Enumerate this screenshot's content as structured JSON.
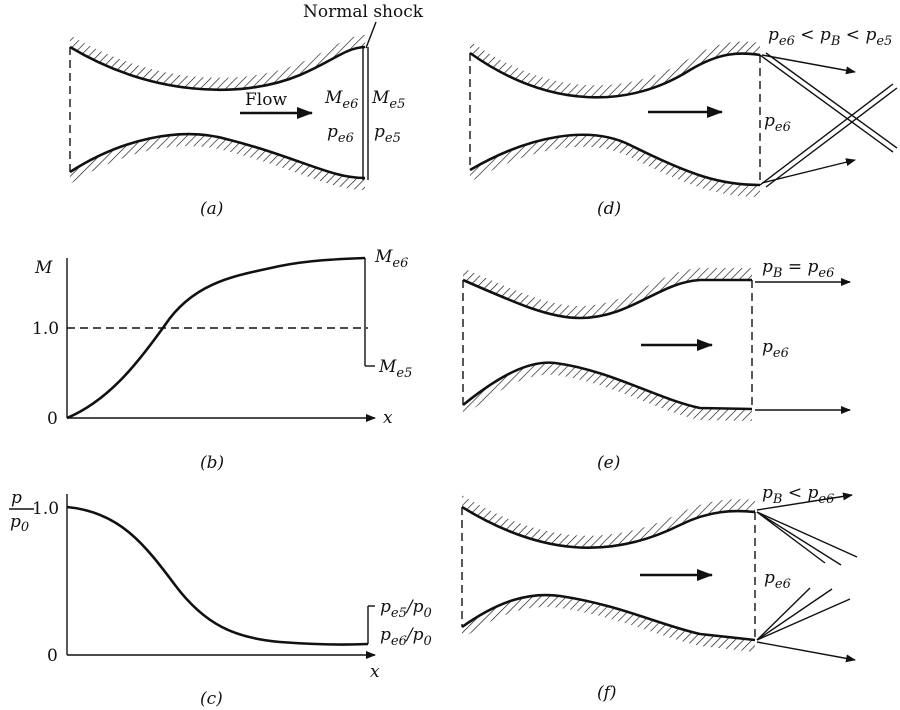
{
  "panel_a": {
    "caption": "(a)",
    "shock_label": "Normal shock",
    "flow_label": "Flow",
    "m_upstream": "M",
    "m_upstream_sub": "e6",
    "m_downstream": "M",
    "m_downstream_sub": "e5",
    "p_upstream": "p",
    "p_upstream_sub": "e6",
    "p_downstream": "p",
    "p_downstream_sub": "e5"
  },
  "panel_b": {
    "caption": "(b)",
    "y_label": "M",
    "x_label": "x",
    "tick_one": "1.0",
    "tick_zero": "0",
    "end_high": "M",
    "end_high_sub": "e6",
    "end_low": "M",
    "end_low_sub": "e5"
  },
  "panel_c": {
    "caption": "(c)",
    "y_label_num": "p",
    "y_label_den": "p",
    "y_label_den_sub": "0",
    "x_label": "x",
    "tick_one": "1.0",
    "tick_zero": "0",
    "end_high": "p",
    "end_high_sub": "e5",
    "end_high_tail": "/p",
    "end_high_tail_sub": "0",
    "end_low": "p",
    "end_low_sub": "e6",
    "end_low_tail": "/p",
    "end_low_tail_sub": "0"
  },
  "panel_d": {
    "caption": "(d)",
    "cond_p1": "p",
    "cond_p1_sub": "e6",
    "cond_lt1": " < ",
    "cond_p2": "p",
    "cond_p2_sub": "B",
    "cond_lt2": " < ",
    "cond_p3": "p",
    "cond_p3_sub": "e5",
    "exit_p": "p",
    "exit_p_sub": "e6"
  },
  "panel_e": {
    "caption": "(e)",
    "cond_p1": "p",
    "cond_p1_sub": "B",
    "cond_eq": " = ",
    "cond_p2": "p",
    "cond_p2_sub": "e6",
    "exit_p": "p",
    "exit_p_sub": "e6"
  },
  "panel_f": {
    "caption": "(f)",
    "cond_p1": "p",
    "cond_p1_sub": "B",
    "cond_lt": " < ",
    "cond_p2": "p",
    "cond_p2_sub": "e6",
    "exit_p": "p",
    "exit_p_sub": "e6"
  }
}
